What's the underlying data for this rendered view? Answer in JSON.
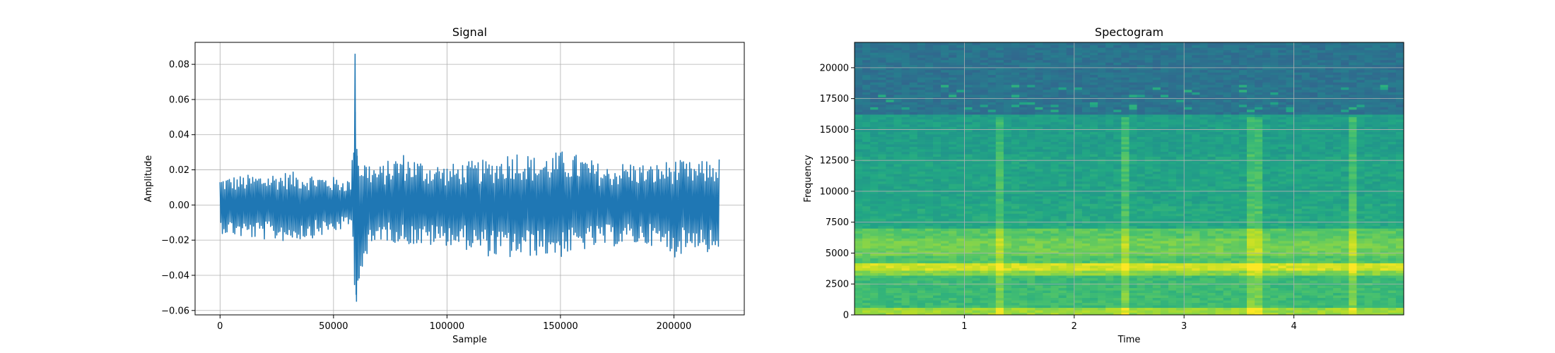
{
  "chart_data": [
    {
      "type": "line",
      "title": "Signal",
      "xlabel": "Sample",
      "ylabel": "Amplitude",
      "xlim": [
        -11000,
        231000
      ],
      "ylim": [
        -0.0625,
        0.0925
      ],
      "grid": true,
      "xticks": [
        0,
        50000,
        100000,
        150000,
        200000
      ],
      "xtick_labels": [
        "0",
        "50000",
        "100000",
        "150000",
        "200000"
      ],
      "yticks": [
        -0.06,
        -0.04,
        -0.02,
        0.0,
        0.02,
        0.04,
        0.06,
        0.08
      ],
      "ytick_labels": [
        "−0.06",
        "−0.04",
        "−0.02",
        "0.00",
        "0.02",
        "0.04",
        "0.06",
        "0.08"
      ],
      "color": "#1f77b4",
      "envelope": {
        "x": [
          0,
          10000,
          20000,
          30000,
          40000,
          50000,
          58000,
          59500,
          61000,
          70000,
          80000,
          90000,
          100000,
          110000,
          120000,
          130000,
          140000,
          150000,
          160000,
          170000,
          180000,
          190000,
          200000,
          210000,
          215000,
          220000
        ],
        "upper": [
          0.016,
          0.017,
          0.018,
          0.019,
          0.018,
          0.016,
          0.015,
          0.086,
          0.028,
          0.022,
          0.03,
          0.025,
          0.023,
          0.025,
          0.026,
          0.032,
          0.027,
          0.031,
          0.028,
          0.022,
          0.025,
          0.023,
          0.026,
          0.024,
          0.026,
          0.027
        ],
        "lower": [
          -0.016,
          -0.019,
          -0.02,
          -0.021,
          -0.019,
          -0.016,
          -0.012,
          -0.055,
          -0.043,
          -0.02,
          -0.022,
          -0.024,
          -0.023,
          -0.026,
          -0.03,
          -0.031,
          -0.029,
          -0.03,
          -0.026,
          -0.024,
          -0.023,
          -0.023,
          -0.03,
          -0.024,
          -0.028,
          -0.032
        ]
      }
    },
    {
      "type": "heatmap",
      "title": "Spectogram",
      "xlabel": "Time",
      "ylabel": "Frequency",
      "xlim": [
        0.0,
        5.0
      ],
      "ylim": [
        0,
        22050
      ],
      "grid": true,
      "xticks": [
        1,
        2,
        3,
        4
      ],
      "xtick_labels": [
        "1",
        "2",
        "3",
        "4"
      ],
      "yticks": [
        0,
        2500,
        5000,
        7500,
        10000,
        12500,
        15000,
        17500,
        20000
      ],
      "ytick_labels": [
        "0",
        "2500",
        "5000",
        "7500",
        "10000",
        "12500",
        "15000",
        "17500",
        "20000"
      ],
      "colormap": "viridis",
      "bands": [
        {
          "from": 0,
          "to": 600,
          "level": 0.85
        },
        {
          "from": 600,
          "to": 3300,
          "level": 0.68
        },
        {
          "from": 3300,
          "to": 3700,
          "level": 0.82
        },
        {
          "from": 3700,
          "to": 4300,
          "level": 0.93
        },
        {
          "from": 4300,
          "to": 4900,
          "level": 0.72
        },
        {
          "from": 4900,
          "to": 6300,
          "level": 0.78
        },
        {
          "from": 6300,
          "to": 7000,
          "level": 0.74
        },
        {
          "from": 7000,
          "to": 9000,
          "level": 0.6
        },
        {
          "from": 9000,
          "to": 13000,
          "level": 0.58
        },
        {
          "from": 13000,
          "to": 16300,
          "level": 0.56
        },
        {
          "from": 16300,
          "to": 22050,
          "level": 0.38
        }
      ],
      "transients": [
        1.33,
        2.45,
        3.65,
        4.53
      ]
    }
  ]
}
